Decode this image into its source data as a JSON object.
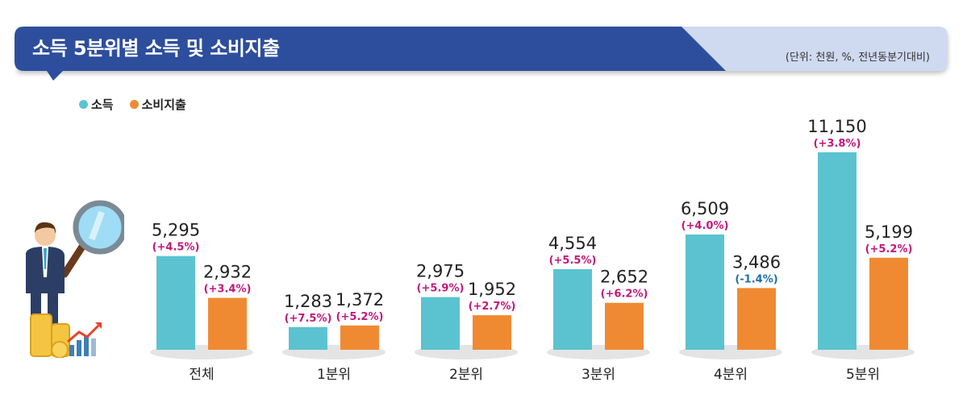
{
  "header": {
    "title": "소득 5분위별 소득 및 소비지출",
    "unit_note": "(단위: 천원, %, 전년동분기대비)"
  },
  "colors": {
    "income": "#5bc3d0",
    "expense": "#f08a32",
    "positive_change": "#c2187c",
    "negative_change": "#1f6fa8",
    "banner_dark": "#2d4e9c",
    "banner_light": "#cfdaf0"
  },
  "chart_data": {
    "type": "bar",
    "title": "소득 5분위별 소득 및 소비지출",
    "categories": [
      "전체",
      "1분위",
      "2분위",
      "3분위",
      "4분위",
      "5분위"
    ],
    "series": [
      {
        "name": "소득",
        "values": [
          5295,
          1283,
          2975,
          4554,
          6509,
          11150
        ],
        "labels": [
          "5,295",
          "1,283",
          "2,975",
          "4,554",
          "6,509",
          "11,150"
        ],
        "changes": [
          "(+4.5%)",
          "(+7.5%)",
          "(+5.9%)",
          "(+5.5%)",
          "(+4.0%)",
          "(+3.8%)"
        ]
      },
      {
        "name": "소비지출",
        "values": [
          2932,
          1372,
          1952,
          2652,
          3486,
          5199
        ],
        "labels": [
          "2,932",
          "1,372",
          "1,952",
          "2,652",
          "3,486",
          "5,199"
        ],
        "changes": [
          "(+3.4%)",
          "(+5.2%)",
          "(+2.7%)",
          "(+6.2%)",
          "(-1.4%)",
          "(+5.2%)"
        ]
      }
    ],
    "legend_position": "top-left",
    "grid": false
  }
}
